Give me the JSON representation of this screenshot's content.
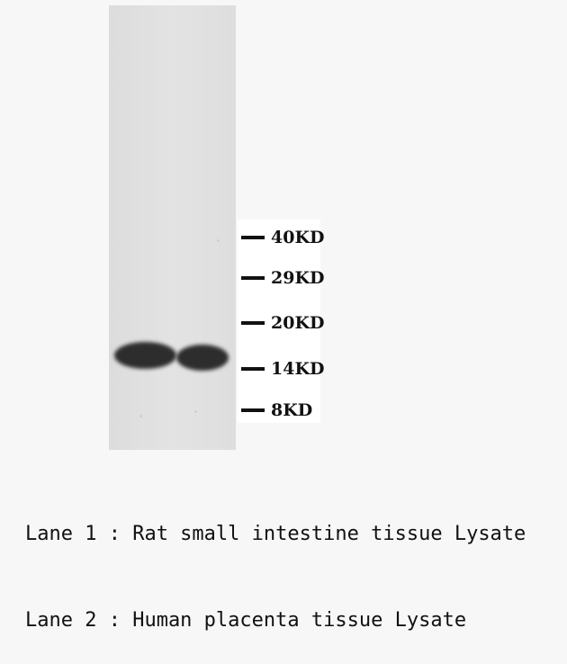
{
  "markers": [
    {
      "label": "40KD"
    },
    {
      "label": "29KD"
    },
    {
      "label": "20KD"
    },
    {
      "label": "14KD"
    },
    {
      "label": "8KD"
    }
  ],
  "lanes": [
    {
      "text": "Lane 1 : Rat small intestine tissue Lysate"
    },
    {
      "text": "Lane 2 : Human placenta tissue Lysate"
    }
  ]
}
